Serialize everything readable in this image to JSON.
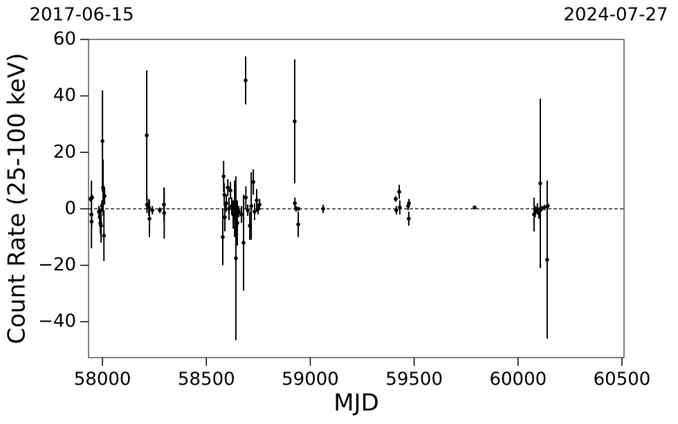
{
  "chart_data": {
    "type": "scatter",
    "annotations": [
      "2017-06-15",
      "2024-07-27"
    ],
    "xlabel": "MJD",
    "ylabel": "Count Rate (25-100 keV)",
    "xlim": [
      57933,
      60510
    ],
    "ylim": [
      -52.7,
      60
    ],
    "xticks": [
      58000,
      58500,
      59000,
      59500,
      60000,
      60500
    ],
    "yticks": [
      {
        "value": -40,
        "label": "−40"
      },
      {
        "value": -20,
        "label": "−20"
      },
      0,
      20,
      40,
      60
    ],
    "reference_line": 0,
    "color": "#000000",
    "x": [
      57943,
      57947,
      57948,
      57950,
      57983,
      57987,
      57990,
      57993,
      57997,
      58000,
      58003,
      58007,
      58010,
      58213,
      58214,
      58223,
      58226,
      58240,
      58276,
      58296,
      58297,
      58579,
      58583,
      58586,
      58589,
      58596,
      58603,
      58609,
      58616,
      58622,
      58629,
      58636,
      58642,
      58649,
      58656,
      58669,
      58679,
      58689,
      58690,
      58699,
      58709,
      58716,
      58726,
      58732,
      58742,
      58749,
      58756,
      58925,
      58926,
      58932,
      58942,
      58943,
      59062,
      59411,
      59414,
      59428,
      59431,
      59471,
      59474,
      59475,
      59791,
      60077,
      60083,
      60093,
      60100,
      60107,
      60113,
      60127,
      60140,
      60143
    ],
    "values": [
      3.5,
      -2,
      -4.5,
      4,
      -1,
      -3,
      -5,
      -6,
      1,
      24,
      7.5,
      -9.5,
      4.5,
      26,
      1.5,
      0.5,
      -3.5,
      -0.5,
      -0.5,
      1.5,
      -1.5,
      -10,
      11.5,
      5,
      -3,
      2,
      7.5,
      0,
      6.5,
      1,
      -2,
      0,
      -17.5,
      -5,
      -1,
      -2,
      -12,
      45.5,
      4,
      -0.5,
      -6,
      1,
      9.5,
      -1,
      3,
      0,
      1.5,
      31,
      2,
      0,
      -5.5,
      0,
      0,
      3.5,
      -0.5,
      6,
      0.5,
      1,
      -3.5,
      2,
      0.5,
      -2,
      -1,
      0,
      -1.5,
      9,
      0,
      0.5,
      -18,
      1
    ],
    "errors": [
      1,
      12,
      2,
      1,
      2,
      3,
      4,
      6,
      2,
      18,
      10,
      9,
      3,
      23,
      3,
      3,
      6.5,
      1.5,
      1,
      6,
      9,
      10,
      5.5,
      4,
      5,
      3,
      3,
      4,
      3,
      3,
      5,
      10,
      29,
      8,
      2,
      3,
      17,
      8.5,
      4,
      2,
      5,
      12,
      4.5,
      3,
      4,
      2,
      2,
      22,
      2,
      1,
      4.5,
      0.5,
      1.5,
      1,
      1.5,
      2.5,
      2.5,
      1.5,
      2.5,
      1.5,
      0.5,
      6,
      2,
      2,
      2,
      30,
      1,
      1,
      28,
      1
    ]
  }
}
